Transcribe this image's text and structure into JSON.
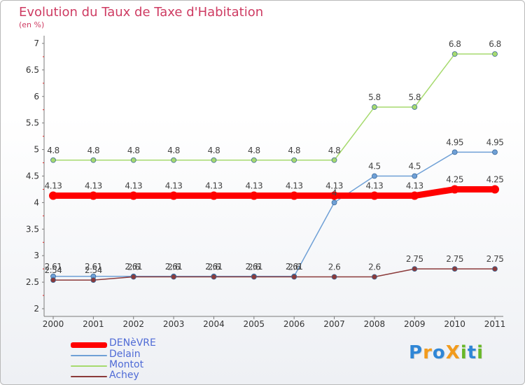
{
  "title": "Evolution du Taux de Taxe d'Habitation",
  "unit": "(en %)",
  "logo": {
    "text": "ProXiti",
    "letters": [
      "P",
      "r",
      "o",
      "X",
      "i",
      "t",
      "i"
    ],
    "colors": [
      "#2f86d6",
      "#f29b1d",
      "#2f86d6",
      "#f29b1d",
      "#68b828",
      "#2f86d6",
      "#68b828"
    ]
  },
  "chart_data": {
    "type": "line",
    "title": "Evolution du Taux de Taxe d'Habitation",
    "ylabel": "(en %)",
    "xlabel": "",
    "x": [
      "2000",
      "2001",
      "2002",
      "2003",
      "2004",
      "2005",
      "2006",
      "2007",
      "2008",
      "2009",
      "2010",
      "2011"
    ],
    "ylim": [
      2,
      7
    ],
    "yticks": [
      "2",
      "2.5",
      "3",
      "3.5",
      "4",
      "4.5",
      "5",
      "5.5",
      "6",
      "6.5",
      "7"
    ],
    "grid": false,
    "legend": "bottom-left",
    "series": [
      {
        "name": "DENèVRE",
        "color": "#ff0000",
        "values": [
          4.13,
          4.13,
          4.13,
          4.13,
          4.13,
          4.13,
          4.13,
          4.13,
          4.13,
          4.13,
          4.25,
          4.25
        ],
        "labels": [
          "4.13",
          "4.13",
          "4.13",
          "4.13",
          "4.13",
          "4.13",
          "4.13",
          "4.13",
          "4.13",
          "4.13",
          "4.25",
          "4.25"
        ]
      },
      {
        "name": "Delain",
        "color": "#6fa0d6",
        "values": [
          2.61,
          2.61,
          2.61,
          2.61,
          2.61,
          2.61,
          2.61,
          4.0,
          4.5,
          4.5,
          4.95,
          4.95
        ],
        "labels": [
          "2.61",
          "2.61",
          "2.61",
          "2.61",
          "2.61",
          "2.61",
          "2.61",
          "4",
          "4.5",
          "4.5",
          "4.95",
          "4.95"
        ]
      },
      {
        "name": "Montot",
        "color": "#a6da6e",
        "values": [
          4.8,
          4.8,
          4.8,
          4.8,
          4.8,
          4.8,
          4.8,
          4.8,
          5.8,
          5.8,
          6.8,
          6.8
        ],
        "labels": [
          "4.8",
          "4.8",
          "4.8",
          "4.8",
          "4.8",
          "4.8",
          "4.8",
          "4.8",
          "5.8",
          "5.8",
          "6.8",
          "6.8"
        ]
      },
      {
        "name": "Achey",
        "color": "#8b3a3a",
        "values": [
          2.54,
          2.54,
          2.6,
          2.6,
          2.6,
          2.6,
          2.6,
          2.6,
          2.6,
          2.75,
          2.75,
          2.75
        ],
        "labels": [
          "2.54",
          "2.54",
          "2.6",
          "2.6",
          "2.6",
          "2.6",
          "2.6",
          "2.6",
          "2.6",
          "2.75",
          "2.75",
          "2.75"
        ]
      }
    ]
  }
}
